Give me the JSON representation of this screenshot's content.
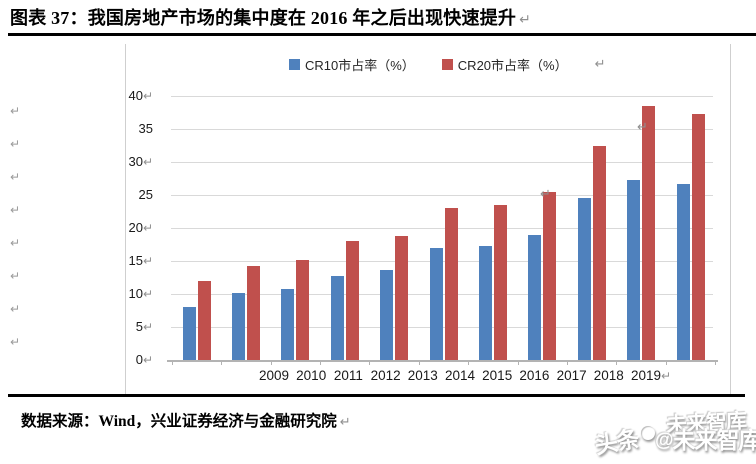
{
  "document": {
    "title": "图表 37：我国房地产市场的集中度在 2016 年之后出现快速提升",
    "source_note": "数据来源：Wind，兴业证券经济与金融研究院",
    "paragraph_mark": "↵",
    "watermark": {
      "prefix": "头条",
      "separator": "@",
      "brand": "未来智库",
      "ghost": "未来智库"
    }
  },
  "chart_data": {
    "type": "bar",
    "title": "",
    "categories": [
      "2009",
      "2010",
      "2011",
      "2012",
      "2013",
      "2014",
      "2015",
      "2016",
      "2017",
      "2018",
      "2019"
    ],
    "series": [
      {
        "name": "CR10市占率（%）",
        "color": "#4F81BD",
        "values": [
          8.0,
          10.1,
          10.7,
          12.8,
          13.7,
          16.9,
          17.2,
          18.9,
          24.5,
          27.2,
          26.6
        ]
      },
      {
        "name": "CR20市占率（%）",
        "color": "#C0504D",
        "values": [
          11.9,
          14.3,
          15.1,
          18.1,
          18.8,
          23.1,
          23.5,
          25.5,
          32.5,
          38.5,
          37.3
        ]
      }
    ],
    "xlabel": "",
    "ylabel": "",
    "ylim": [
      0,
      40
    ],
    "ytick_step": 5,
    "yticks_with_return_mark": [
      40,
      30,
      20,
      15,
      10,
      5,
      0
    ],
    "grid": true,
    "legend_position": "top-center"
  }
}
